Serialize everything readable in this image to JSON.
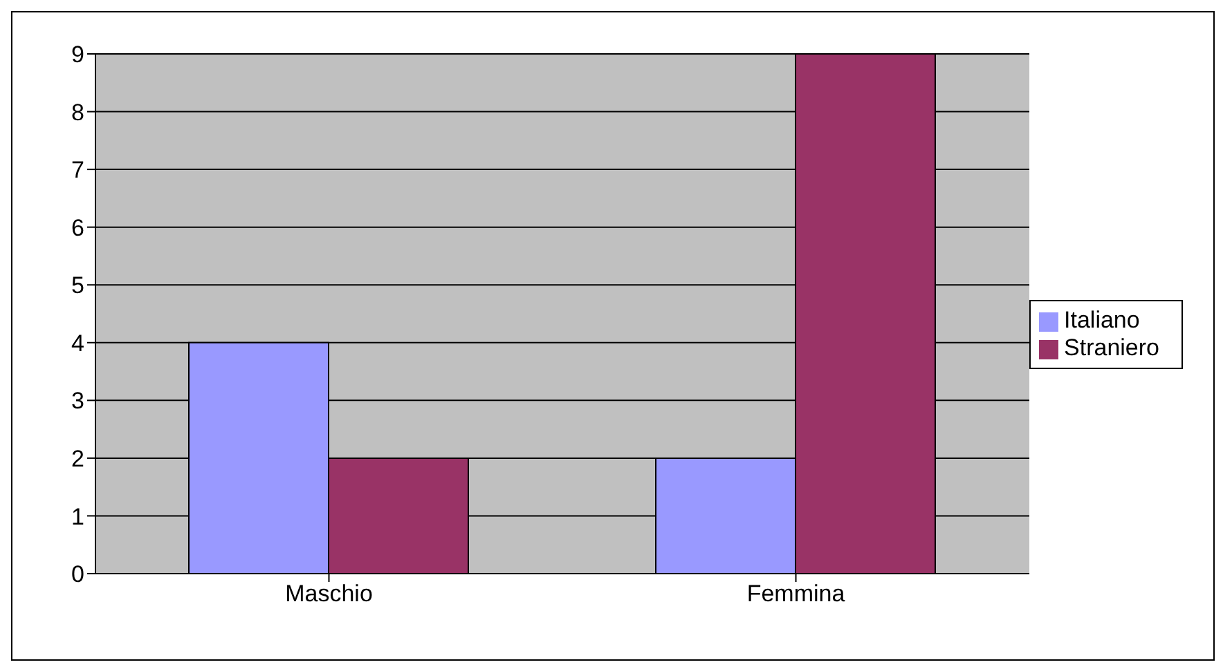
{
  "chart_data": {
    "type": "bar",
    "categories": [
      "Maschio",
      "Femmina"
    ],
    "series": [
      {
        "name": "Italiano",
        "color": "#9999ff",
        "values": [
          4,
          2
        ]
      },
      {
        "name": "Straniero",
        "color": "#993366",
        "values": [
          2,
          9
        ]
      }
    ],
    "ylim": [
      0,
      9
    ],
    "yticks": [
      0,
      1,
      2,
      3,
      4,
      5,
      6,
      7,
      8,
      9
    ],
    "grid": "y",
    "legend": "right"
  }
}
